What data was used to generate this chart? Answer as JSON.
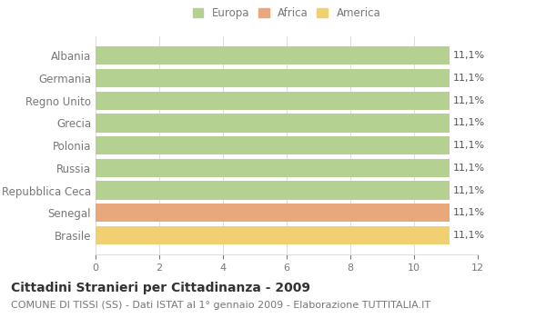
{
  "categories": [
    "Albania",
    "Germania",
    "Regno Unito",
    "Grecia",
    "Polonia",
    "Russia",
    "Repubblica Ceca",
    "Senegal",
    "Brasile"
  ],
  "values": [
    11.1,
    11.1,
    11.1,
    11.1,
    11.1,
    11.1,
    11.1,
    11.1,
    11.1
  ],
  "bar_colors": [
    "#b5d191",
    "#b5d191",
    "#b5d191",
    "#b5d191",
    "#b5d191",
    "#b5d191",
    "#b5d191",
    "#e8a87c",
    "#f0d070"
  ],
  "legend_labels": [
    "Europa",
    "Africa",
    "America"
  ],
  "legend_colors": [
    "#b5d191",
    "#e8a87c",
    "#f0d070"
  ],
  "xlim": [
    0,
    12
  ],
  "xticks": [
    0,
    2,
    4,
    6,
    8,
    10,
    12
  ],
  "label_text": "11,1%",
  "title": "Cittadini Stranieri per Cittadinanza - 2009",
  "subtitle": "COMUNE DI TISSI (SS) - Dati ISTAT al 1° gennaio 2009 - Elaborazione TUTTITALIA.IT",
  "background_color": "#ffffff",
  "grid_color": "#dddddd",
  "title_fontsize": 10,
  "subtitle_fontsize": 8,
  "label_fontsize": 8,
  "tick_fontsize": 8,
  "legend_fontsize": 8.5,
  "ylabel_fontsize": 8.5
}
